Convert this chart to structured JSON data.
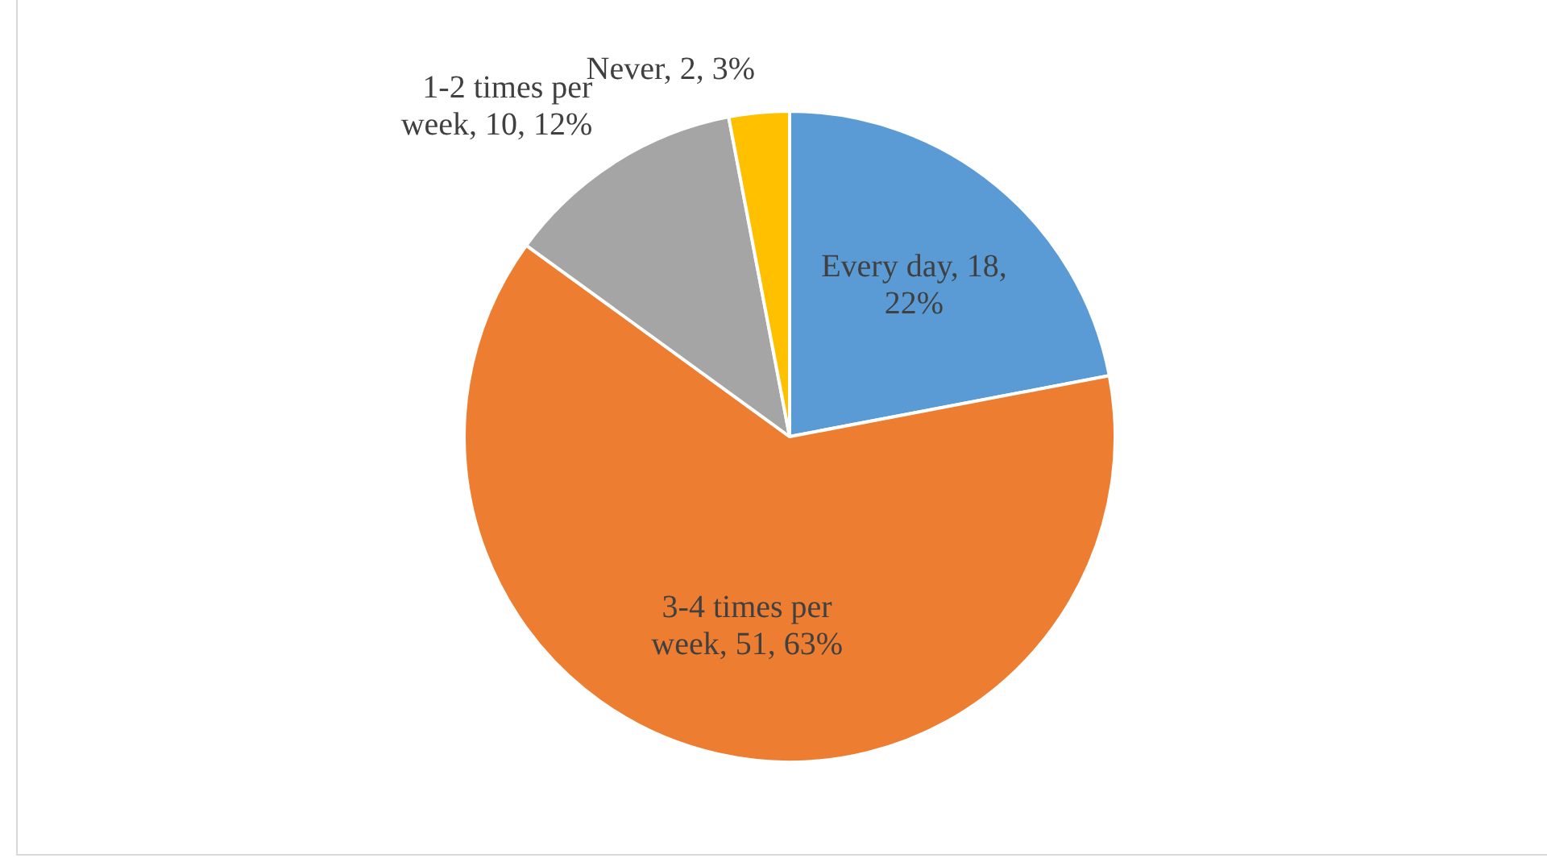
{
  "chart_data": {
    "type": "pie",
    "categories": [
      "Every day",
      "3-4 times per week",
      "1-2 times per week",
      "Never"
    ],
    "values": [
      22,
      63,
      12,
      3
    ],
    "value_labels": [
      "18, 22%",
      "51, 63%",
      "10, 12%",
      "2, 3%"
    ],
    "colors": [
      "#5b9bd5",
      "#ed7d31",
      "#a5a5a5",
      "#ffc000"
    ],
    "legend": false
  }
}
